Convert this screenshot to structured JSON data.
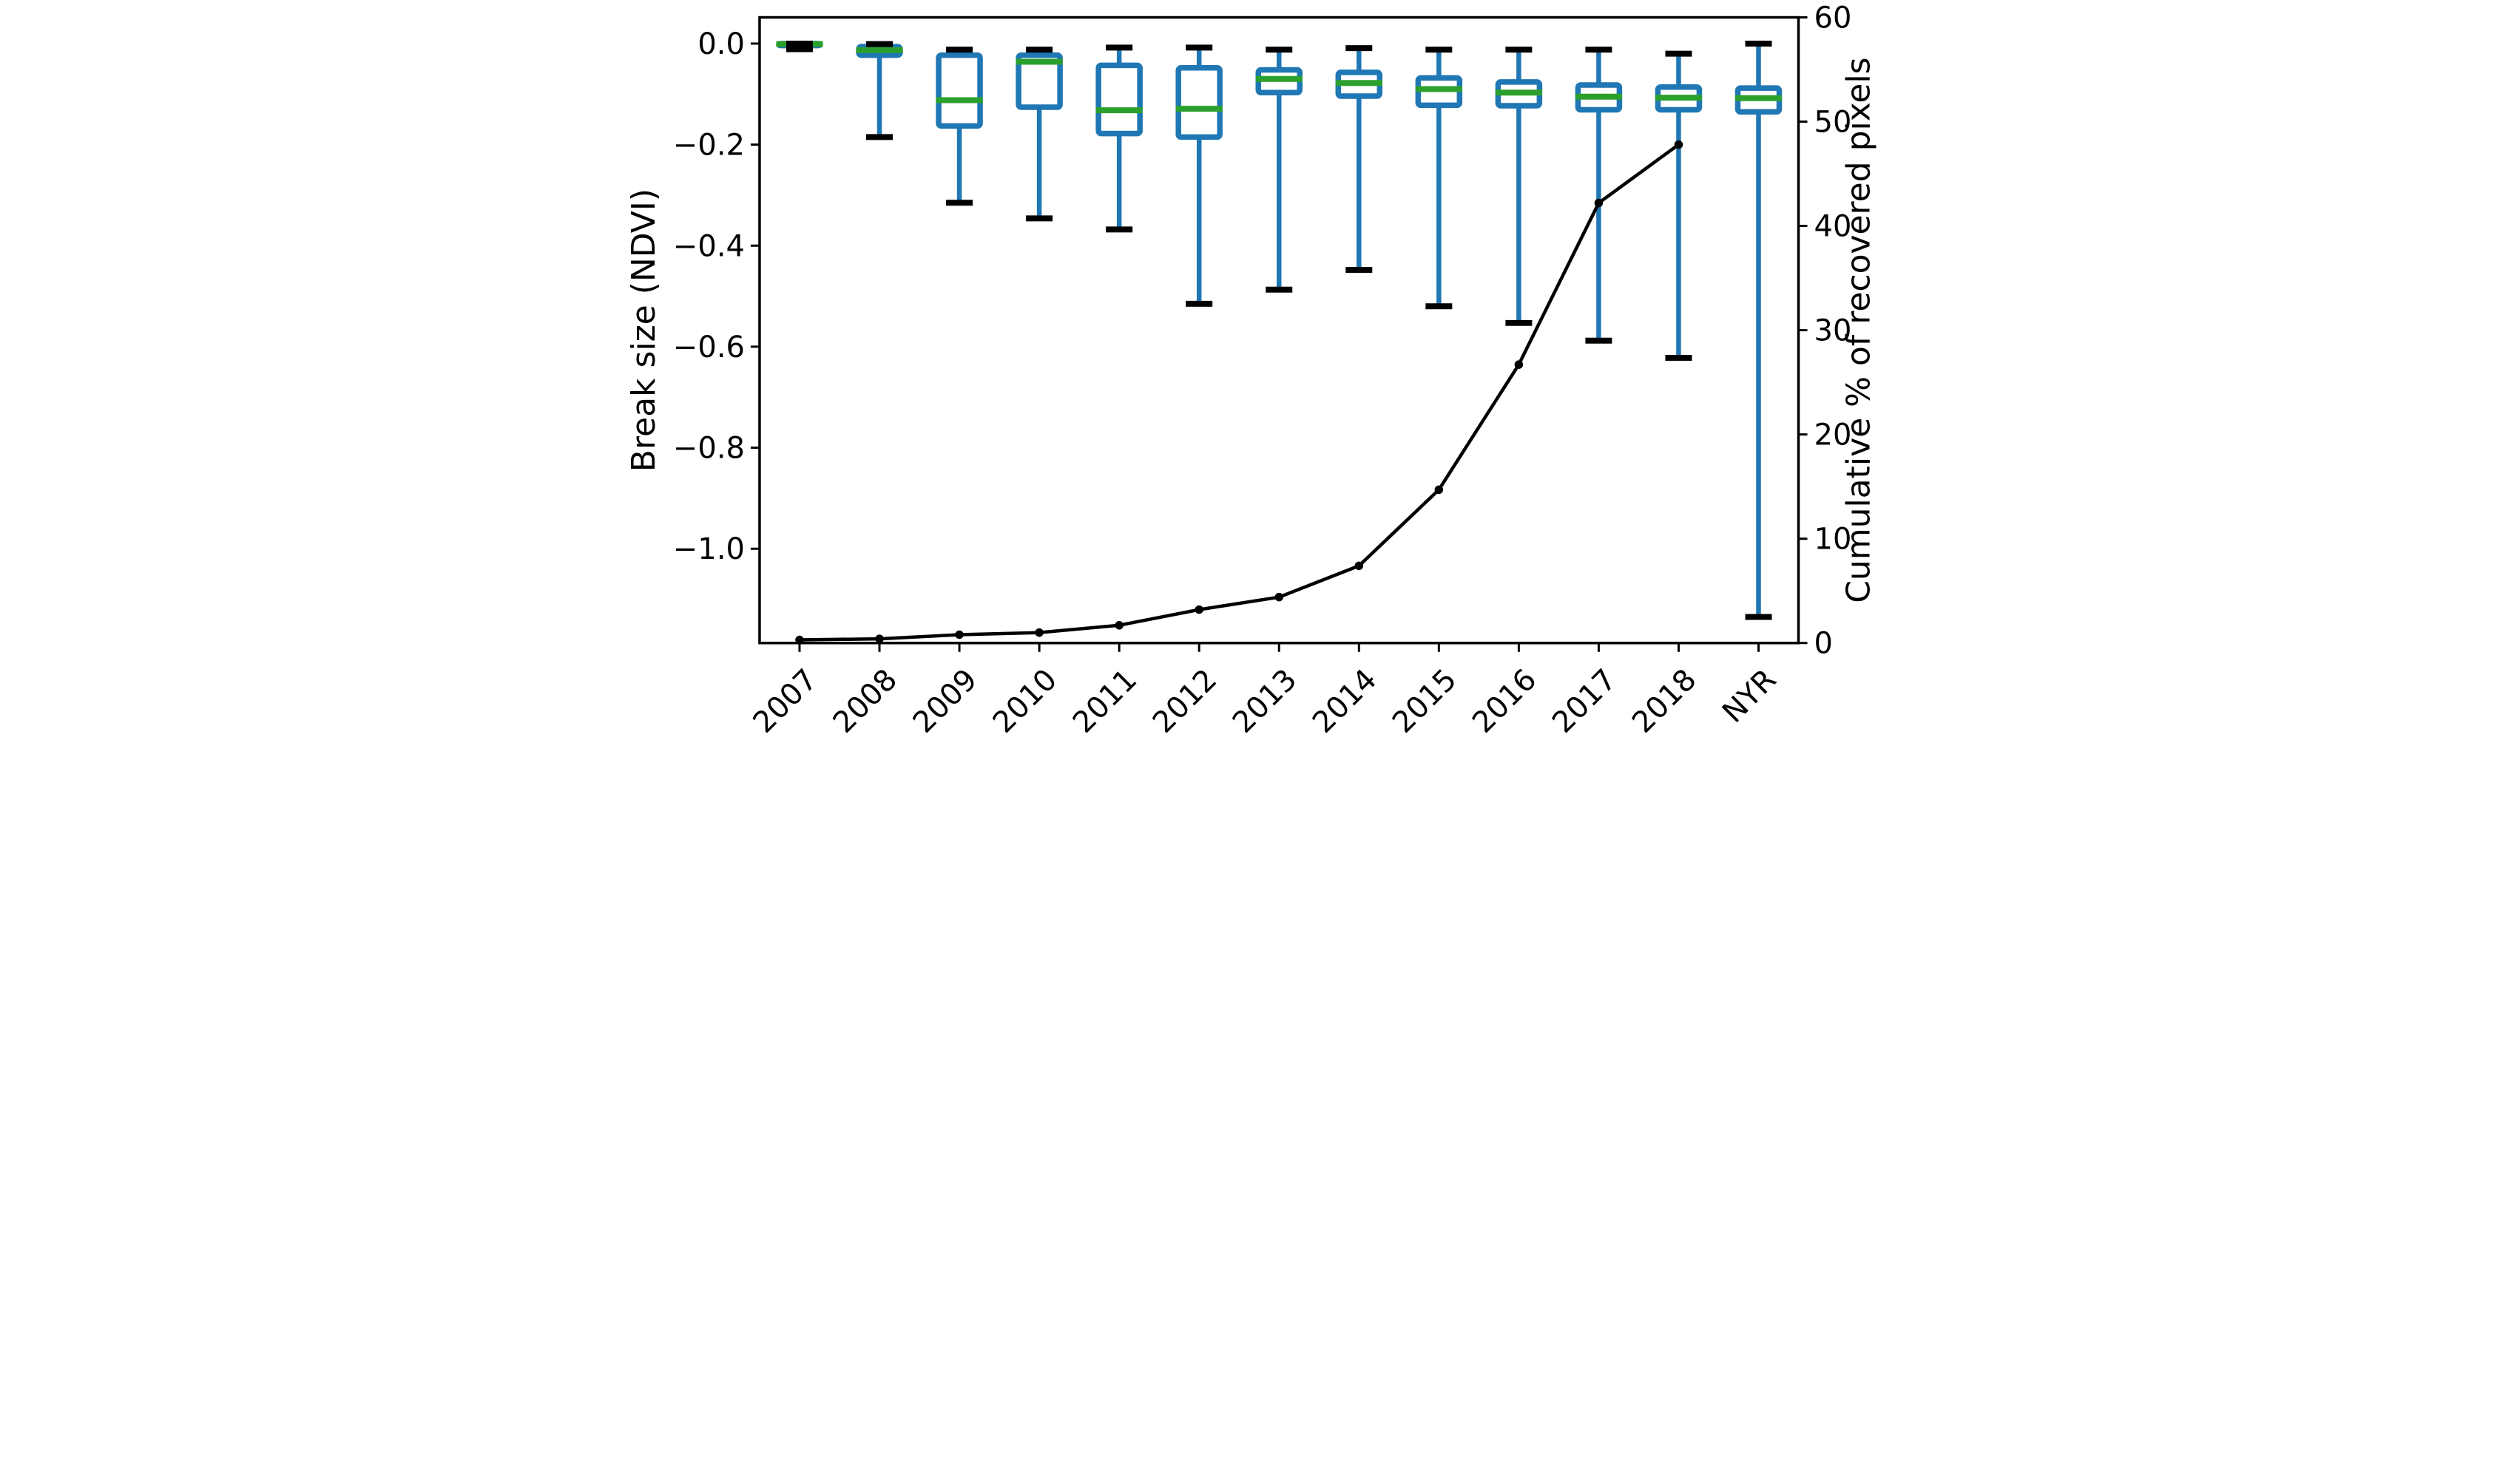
{
  "figure": {
    "background": "#ffffff",
    "ylabel_left": "Break size (NDVI)",
    "ylabel_right": "Cumulative % of recovered pixels"
  },
  "chart_data": {
    "type": "boxplot",
    "title": "",
    "xlabel": "",
    "ylabel_left": "Break size (NDVI)",
    "ylabel_right": "Cumulative % of recovered pixels",
    "grid": false,
    "legend": "none",
    "categories": [
      "2007",
      "2008",
      "2009",
      "2010",
      "2011",
      "2012",
      "2013",
      "2014",
      "2015",
      "2016",
      "2017",
      "2018",
      "NYR"
    ],
    "y_left": {
      "lim": [
        -1.1866,
        0.0519
      ],
      "ticks": [
        0.0,
        -0.2,
        -0.4,
        -0.6,
        -0.8,
        -1.0
      ],
      "tick_labels": [
        "0.0",
        "−0.2",
        "−0.4",
        "−0.6",
        "−0.8",
        "−1.0"
      ]
    },
    "y_right": {
      "lim": [
        0,
        60
      ],
      "ticks": [
        0,
        10,
        20,
        30,
        40,
        50,
        60
      ],
      "tick_labels": [
        "0",
        "10",
        "20",
        "30",
        "40",
        "50",
        "60"
      ]
    },
    "boxes": [
      {
        "category": "2007",
        "whisker_low": -0.011,
        "q1": -0.004,
        "median": -0.001,
        "q3": 0.0,
        "whisker_high": 0.0
      },
      {
        "category": "2008",
        "whisker_low": -0.185,
        "q1": -0.023,
        "median": -0.013,
        "q3": -0.006,
        "whisker_high": -0.001
      },
      {
        "category": "2009",
        "whisker_low": -0.315,
        "q1": -0.163,
        "median": -0.112,
        "q3": -0.023,
        "whisker_high": -0.012
      },
      {
        "category": "2010",
        "whisker_low": -0.346,
        "q1": -0.126,
        "median": -0.036,
        "q3": -0.023,
        "whisker_high": -0.012
      },
      {
        "category": "2011",
        "whisker_low": -0.368,
        "q1": -0.178,
        "median": -0.132,
        "q3": -0.043,
        "whisker_high": -0.008
      },
      {
        "category": "2012",
        "whisker_low": -0.515,
        "q1": -0.185,
        "median": -0.129,
        "q3": -0.048,
        "whisker_high": -0.008
      },
      {
        "category": "2013",
        "whisker_low": -0.487,
        "q1": -0.097,
        "median": -0.07,
        "q3": -0.052,
        "whisker_high": -0.012
      },
      {
        "category": "2014",
        "whisker_low": -0.448,
        "q1": -0.104,
        "median": -0.078,
        "q3": -0.057,
        "whisker_high": -0.009
      },
      {
        "category": "2015",
        "whisker_low": -0.52,
        "q1": -0.122,
        "median": -0.09,
        "q3": -0.068,
        "whisker_high": -0.012
      },
      {
        "category": "2016",
        "whisker_low": -0.553,
        "q1": -0.123,
        "median": -0.097,
        "q3": -0.076,
        "whisker_high": -0.012
      },
      {
        "category": "2017",
        "whisker_low": -0.588,
        "q1": -0.131,
        "median": -0.105,
        "q3": -0.082,
        "whisker_high": -0.012
      },
      {
        "category": "2018",
        "whisker_low": -0.622,
        "q1": -0.131,
        "median": -0.107,
        "q3": -0.086,
        "whisker_high": -0.02
      },
      {
        "category": "NYR",
        "whisker_low": -1.135,
        "q1": -0.135,
        "median": -0.108,
        "q3": -0.088,
        "whisker_high": 0.0
      }
    ],
    "overlay_line": {
      "name": "Cumulative % of recovered pixels",
      "axis": "right",
      "categories": [
        "2007",
        "2008",
        "2009",
        "2010",
        "2011",
        "2012",
        "2013",
        "2014",
        "2015",
        "2016",
        "2017",
        "2018"
      ],
      "values": [
        0.3,
        0.4,
        0.8,
        1.0,
        1.7,
        3.2,
        4.4,
        7.4,
        14.7,
        26.7,
        42.2,
        47.8
      ]
    },
    "colors": {
      "box_edge": "#1f77b4",
      "box_fill": "#ffffff",
      "median": "#2ca02c",
      "whisker": "#1f77b4",
      "cap": "#000000",
      "line": "#000000",
      "marker": "#000000",
      "axis": "#000000",
      "background": "#ffffff"
    }
  }
}
